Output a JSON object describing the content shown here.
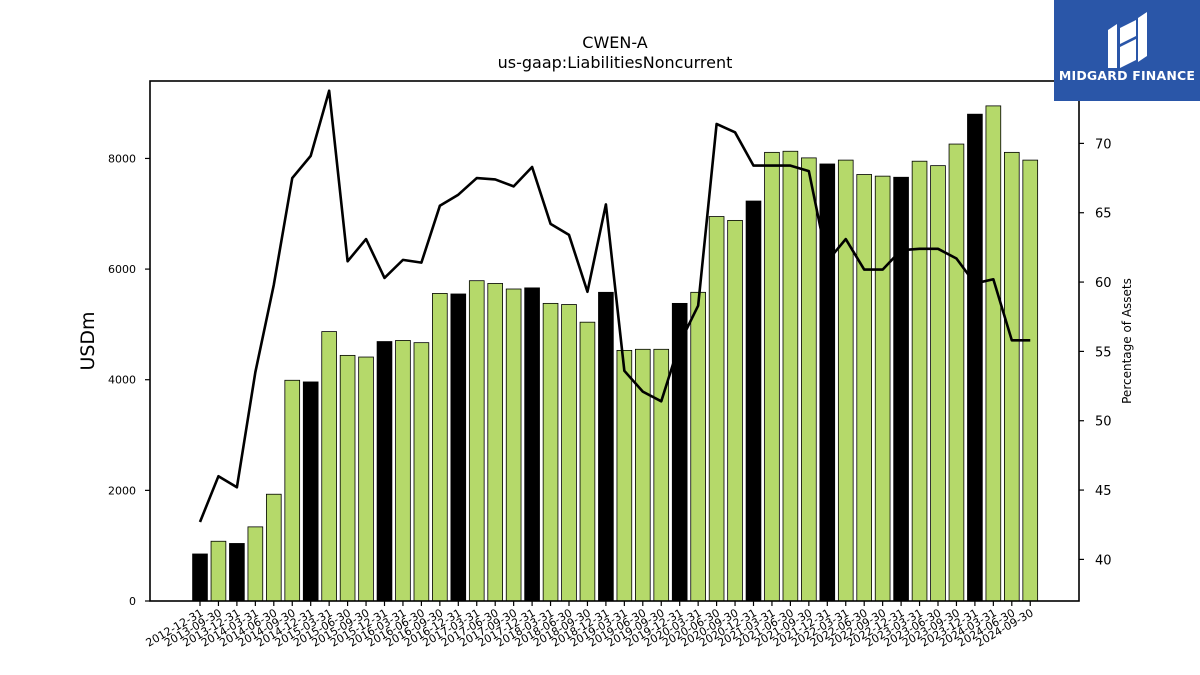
{
  "chart_data": {
    "type": "bar",
    "title": "CWEN-A",
    "subtitle": "us-gaap:LiabilitiesNoncurrent",
    "ylabel": "USDm",
    "y2label": "Percentage of Assets",
    "ylim": [
      0,
      9400
    ],
    "y2lim": [
      37.0,
      74.5
    ],
    "yticks": [
      0,
      2000,
      4000,
      6000,
      8000
    ],
    "y2ticks": [
      40,
      45,
      50,
      55,
      60,
      65,
      70
    ],
    "categories": [
      "2012-12-31",
      "2013-09-30",
      "2013-12-31",
      "2014-03-31",
      "2014-06-30",
      "2014-09-30",
      "2014-12-31",
      "2015-03-31",
      "2015-06-30",
      "2015-09-30",
      "2015-12-31",
      "2016-03-31",
      "2016-06-30",
      "2016-09-30",
      "2016-12-31",
      "2017-03-31",
      "2017-06-30",
      "2017-09-30",
      "2017-12-31",
      "2018-03-31",
      "2018-06-30",
      "2018-09-30",
      "2018-12-31",
      "2019-03-31",
      "2019-06-30",
      "2019-09-30",
      "2019-12-31",
      "2020-03-31",
      "2020-06-30",
      "2020-09-30",
      "2020-12-31",
      "2021-03-31",
      "2021-06-30",
      "2021-09-30",
      "2021-12-31",
      "2022-03-31",
      "2022-06-30",
      "2022-09-30",
      "2022-12-31",
      "2023-03-31",
      "2023-06-30",
      "2023-09-30",
      "2023-12-31",
      "2024-03-31",
      "2024-06-30",
      "2024-09-30"
    ],
    "values": [
      850,
      1080,
      1040,
      1340,
      1930,
      3990,
      3960,
      4870,
      4440,
      4410,
      4690,
      4710,
      4670,
      5560,
      5550,
      5790,
      5740,
      5640,
      5660,
      5380,
      5360,
      5040,
      5580,
      4530,
      4550,
      4550,
      5380,
      5580,
      6950,
      6880,
      7230,
      8110,
      8130,
      8010,
      7900,
      7970,
      7710,
      7680,
      7660,
      7950,
      7870,
      8260,
      8800,
      8950,
      8110,
      7970
    ],
    "year_end": [
      true,
      false,
      true,
      false,
      false,
      false,
      true,
      false,
      false,
      false,
      true,
      false,
      false,
      false,
      true,
      false,
      false,
      false,
      true,
      false,
      false,
      false,
      true,
      false,
      false,
      false,
      true,
      false,
      false,
      false,
      true,
      false,
      false,
      false,
      true,
      false,
      false,
      false,
      true,
      false,
      false,
      false,
      true,
      false,
      false,
      false
    ],
    "pct_of_assets": [
      42.7,
      46.0,
      45.2,
      53.5,
      59.8,
      67.5,
      69.1,
      73.8,
      61.5,
      63.1,
      60.3,
      61.6,
      61.4,
      65.5,
      66.3,
      67.5,
      67.4,
      66.9,
      68.3,
      64.2,
      63.4,
      59.3,
      65.6,
      53.6,
      52.1,
      51.4,
      55.6,
      58.3,
      71.4,
      70.8,
      68.4,
      68.4,
      68.4,
      68.0,
      61.5,
      63.1,
      60.9,
      60.9,
      62.3,
      62.4,
      62.4,
      61.7,
      59.9,
      60.2,
      55.8,
      55.8
    ],
    "colors": {
      "bar_default": "#b5d96a",
      "bar_year_end": "#000000",
      "bar_edge": "#000000",
      "line": "#000000"
    },
    "grid": false,
    "legend": "none"
  },
  "logo": {
    "text": "MIDGARD FINANCE"
  }
}
